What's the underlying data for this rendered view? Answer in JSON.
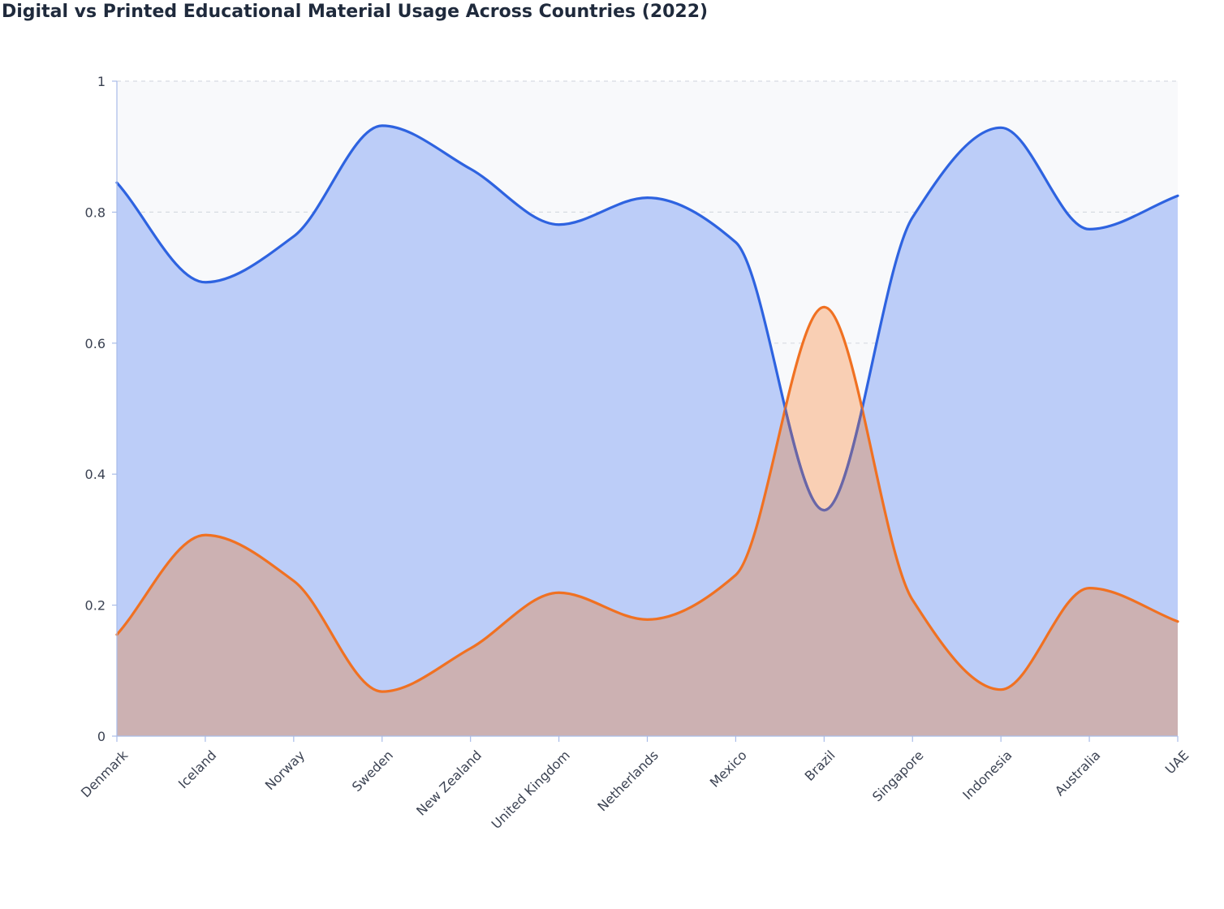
{
  "chart_data": {
    "type": "area",
    "title": "Digital vs Printed Educational Material Usage Across Countries (2022)",
    "xlabel": "",
    "ylabel": "",
    "categories": [
      "Denmark",
      "Iceland",
      "Norway",
      "Sweden",
      "New Zealand",
      "United Kingdom",
      "Netherlands",
      "Mexico",
      "Brazil",
      "Singapore",
      "Indonesia",
      "Australia",
      "UAE"
    ],
    "series": [
      {
        "values": [
          0.845,
          0.693,
          0.763,
          0.932,
          0.866,
          0.781,
          0.822,
          0.754,
          0.345,
          0.792,
          0.929,
          0.774,
          0.825
        ],
        "color": "#2e63e0",
        "fill": "#bccdf8"
      },
      {
        "values": [
          0.155,
          0.307,
          0.237,
          0.068,
          0.134,
          0.219,
          0.178,
          0.246,
          0.655,
          0.208,
          0.071,
          0.226,
          0.175
        ],
        "color": "#f07122",
        "fill": "#f9cfb4"
      }
    ],
    "ylim": [
      0,
      1
    ],
    "yticks": [
      0,
      0.2,
      0.4,
      0.6,
      0.8,
      1
    ],
    "ytick_labels": [
      "0",
      "0.2",
      "0.4",
      "0.6",
      "0.8",
      "1"
    ],
    "grid": true,
    "legend": "none",
    "colors": {
      "plot_background": "#f8f9fb",
      "overlap_fill": "#ccb1b2",
      "overlap_line": "#6a66a6",
      "grid": "#d7dbe2",
      "axis": "#a9bce8"
    }
  }
}
